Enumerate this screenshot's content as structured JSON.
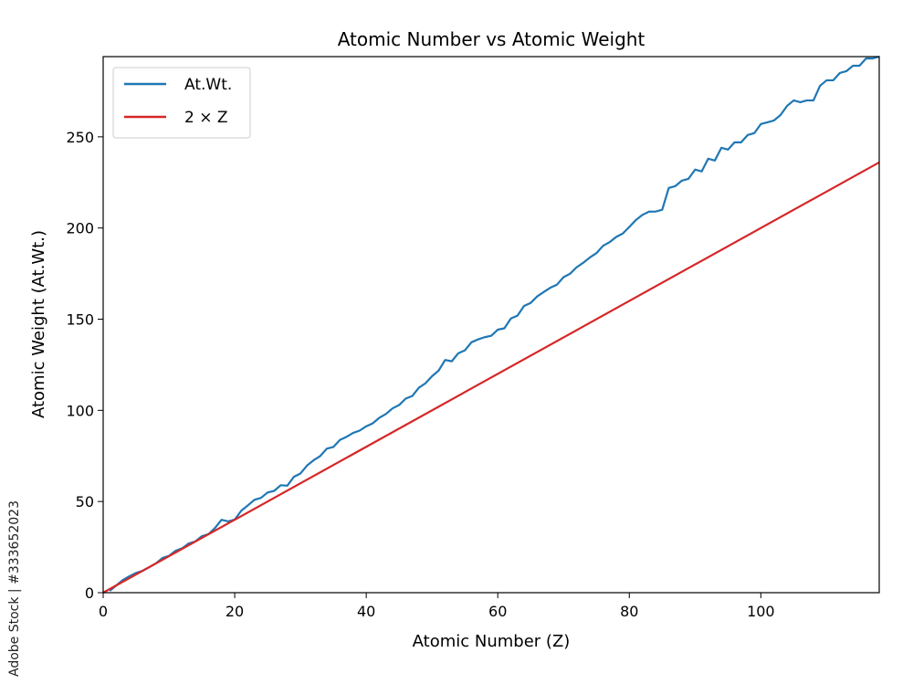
{
  "chart_data": {
    "type": "line",
    "title": "Atomic Number vs Atomic Weight",
    "xlabel": "Atomic Number (Z)",
    "ylabel": "Atomic Weight (At.Wt.)",
    "xlim": [
      0,
      118
    ],
    "ylim": [
      0,
      294
    ],
    "xticks": [
      0,
      20,
      40,
      60,
      80,
      100
    ],
    "yticks": [
      0,
      50,
      100,
      150,
      200,
      250
    ],
    "legend_position": "top-left",
    "grid": false,
    "series": [
      {
        "name": "At.Wt.",
        "color": "#1f77b4",
        "x": [
          1,
          2,
          3,
          4,
          5,
          6,
          7,
          8,
          9,
          10,
          11,
          12,
          13,
          14,
          15,
          16,
          17,
          18,
          19,
          20,
          21,
          22,
          23,
          24,
          25,
          26,
          27,
          28,
          29,
          30,
          31,
          32,
          33,
          34,
          35,
          36,
          37,
          38,
          39,
          40,
          41,
          42,
          43,
          44,
          45,
          46,
          47,
          48,
          49,
          50,
          51,
          52,
          53,
          54,
          55,
          56,
          57,
          58,
          59,
          60,
          61,
          62,
          63,
          64,
          65,
          66,
          67,
          68,
          69,
          70,
          71,
          72,
          73,
          74,
          75,
          76,
          77,
          78,
          79,
          80,
          81,
          82,
          83,
          84,
          85,
          86,
          87,
          88,
          89,
          90,
          91,
          92,
          93,
          94,
          95,
          96,
          97,
          98,
          99,
          100,
          101,
          102,
          103,
          104,
          105,
          106,
          107,
          108,
          109,
          110,
          111,
          112,
          113,
          114,
          115,
          116,
          117,
          118
        ],
        "y": [
          1.008,
          4.003,
          6.94,
          9.012,
          10.81,
          12.011,
          14.007,
          15.999,
          18.998,
          20.18,
          22.99,
          24.305,
          26.982,
          28.085,
          30.974,
          32.06,
          35.45,
          39.948,
          39.098,
          40.078,
          44.956,
          47.867,
          50.942,
          51.996,
          54.938,
          55.845,
          58.933,
          58.693,
          63.546,
          65.38,
          69.723,
          72.63,
          74.922,
          78.971,
          79.904,
          83.798,
          85.468,
          87.62,
          88.906,
          91.224,
          92.906,
          95.95,
          98,
          101.07,
          102.906,
          106.42,
          107.868,
          112.414,
          114.818,
          118.71,
          121.76,
          127.6,
          126.904,
          131.293,
          132.905,
          137.327,
          138.905,
          140.116,
          140.908,
          144.242,
          145,
          150.36,
          151.964,
          157.25,
          158.925,
          162.5,
          164.93,
          167.259,
          168.934,
          173.045,
          174.967,
          178.49,
          180.948,
          183.84,
          186.207,
          190.23,
          192.217,
          195.084,
          196.967,
          200.592,
          204.38,
          207.2,
          208.98,
          209,
          210,
          222,
          223,
          226,
          227,
          232.038,
          231.036,
          238.029,
          237,
          244,
          243,
          247,
          247,
          251,
          252,
          257,
          258,
          259,
          262,
          267,
          270,
          269,
          270,
          270,
          278,
          281,
          281,
          285,
          286,
          289,
          289,
          293,
          293,
          294
        ]
      },
      {
        "name": "2 × Z",
        "color": "#d62728",
        "x": [
          0,
          118
        ],
        "y": [
          0,
          236
        ]
      }
    ]
  },
  "watermark": {
    "text": "Adobe Stock | #333652023"
  }
}
